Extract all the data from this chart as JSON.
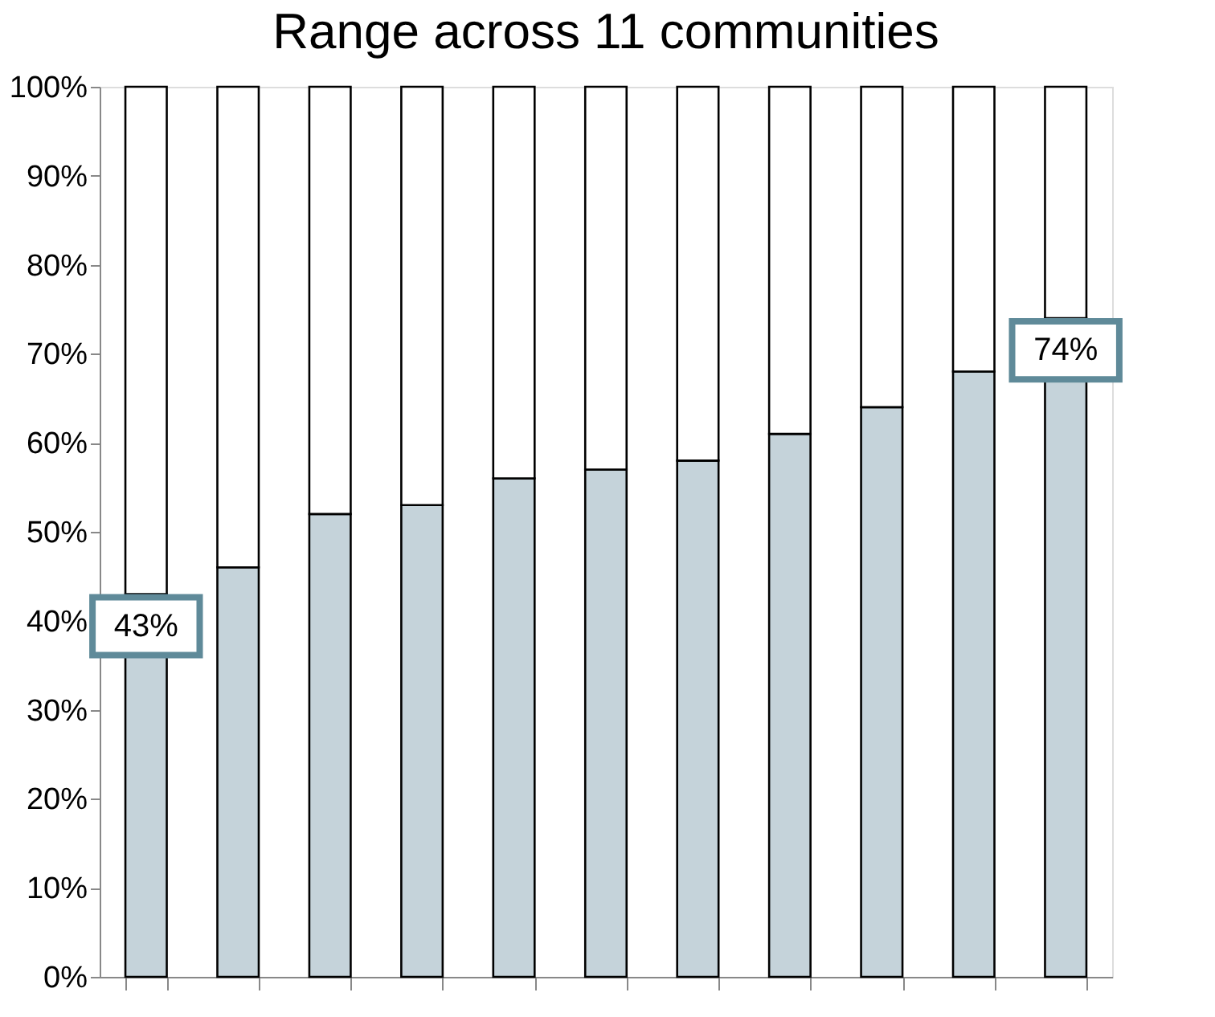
{
  "chart_data": {
    "type": "bar",
    "title": "Range across 11 communities",
    "stacked": true,
    "categories": [
      null,
      null,
      null,
      null,
      null,
      null,
      null,
      null,
      null,
      null,
      null
    ],
    "series": [
      {
        "color": "#c5d3da",
        "values": [
          43,
          46,
          52,
          53,
          56,
          57,
          58,
          61,
          64,
          68,
          74
        ],
        "value_labels": [
          "43%",
          null,
          null,
          null,
          null,
          null,
          null,
          null,
          null,
          null,
          "74%"
        ]
      },
      {
        "color": "#ffffff",
        "values": [
          57,
          54,
          48,
          47,
          44,
          43,
          42,
          39,
          36,
          32,
          26
        ]
      }
    ],
    "ylim": [
      0,
      100
    ],
    "yticks": [
      {
        "value": 0,
        "label": "0%"
      },
      {
        "value": 10,
        "label": "10%"
      },
      {
        "value": 20,
        "label": "20%"
      },
      {
        "value": 30,
        "label": "30%"
      },
      {
        "value": 40,
        "label": "40%"
      },
      {
        "value": 50,
        "label": "50%"
      },
      {
        "value": 60,
        "label": "60%"
      },
      {
        "value": 70,
        "label": "70%"
      },
      {
        "value": 80,
        "label": "80%"
      },
      {
        "value": 90,
        "label": "90%"
      },
      {
        "value": 100,
        "label": "100%"
      }
    ],
    "grid": false,
    "legend": false
  }
}
